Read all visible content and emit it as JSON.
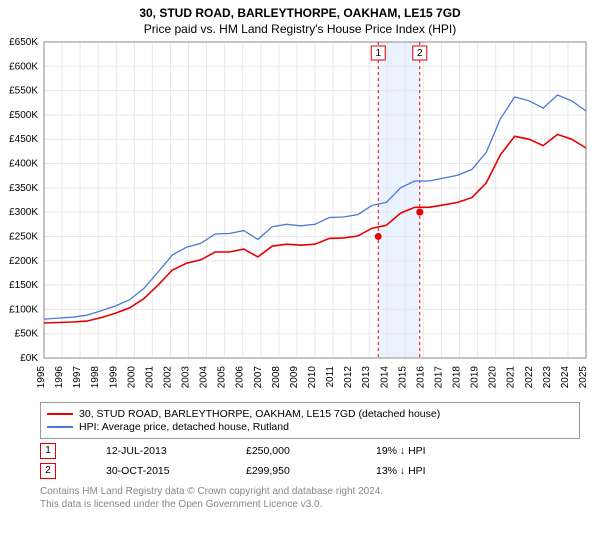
{
  "title1": "30, STUD ROAD, BARLEYTHORPE, OAKHAM, LE15 7GD",
  "title2": "Price paid vs. HM Land Registry's House Price Index (HPI)",
  "chart": {
    "type": "line",
    "background_color": "#ffffff",
    "grid_color": "#e7e7e7",
    "axis_color": "#000000",
    "ylim": [
      0,
      650
    ],
    "y_unit_label": "£{v}K",
    "ytick_step": 50,
    "x_years": [
      1995,
      1996,
      1997,
      1998,
      1999,
      2000,
      2001,
      2002,
      2003,
      2004,
      2005,
      2006,
      2007,
      2008,
      2009,
      2010,
      2011,
      2012,
      2013,
      2014,
      2015,
      2016,
      2017,
      2018,
      2019,
      2020,
      2021,
      2022,
      2023,
      2024,
      2025
    ],
    "series": [
      {
        "name": "price_paid",
        "label": "30, STUD ROAD, BARLEYTHORPE, OAKHAM, LE15 7GD (detached house)",
        "color": "#e60000",
        "line_width": 1.6,
        "y": [
          72,
          73,
          74,
          76,
          83,
          92,
          103,
          122,
          150,
          181,
          195,
          202,
          218,
          218,
          224,
          208,
          230,
          234,
          232,
          234,
          246,
          247,
          251,
          267,
          273,
          298,
          310,
          310,
          315,
          320,
          330,
          360,
          418,
          456,
          450,
          437,
          460,
          450,
          432
        ]
      },
      {
        "name": "hpi",
        "label": "HPI: Average price, detached house, Rutland",
        "color": "#4a78d6",
        "line_width": 1.3,
        "y": [
          80,
          82,
          84,
          88,
          97,
          107,
          120,
          143,
          177,
          212,
          228,
          236,
          255,
          256,
          262,
          244,
          270,
          275,
          272,
          275,
          289,
          290,
          295,
          314,
          320,
          350,
          364,
          364,
          370,
          376,
          388,
          423,
          492,
          537,
          529,
          514,
          541,
          529,
          508
        ]
      }
    ],
    "highlight_band": {
      "from_year": 2013.5,
      "to_year": 2015.8,
      "fill": "#eaf2ff"
    },
    "sale_markers": [
      {
        "id": "1",
        "year": 2013.5,
        "y_value": 250,
        "line_color": "#e60000",
        "dash": "3,3"
      },
      {
        "id": "2",
        "year": 2015.8,
        "y_value": 300,
        "line_color": "#e60000",
        "dash": "3,3"
      }
    ],
    "marker_dot": {
      "radius": 3.5,
      "fill": "#e60000"
    }
  },
  "legend": {
    "border_color": "#999999",
    "series_labels": [
      "30, STUD ROAD, BARLEYTHORPE, OAKHAM, LE15 7GD (detached house)",
      "HPI: Average price, detached house, Rutland"
    ],
    "colors": [
      "#e60000",
      "#4a78d6"
    ]
  },
  "sales_table": [
    {
      "marker": "1",
      "marker_color": "#e60000",
      "date": "12-JUL-2013",
      "price": "£250,000",
      "delta": "19% ↓ HPI"
    },
    {
      "marker": "2",
      "marker_color": "#e60000",
      "date": "30-OCT-2015",
      "price": "£299,950",
      "delta": "13% ↓ HPI"
    }
  ],
  "footer1": "Contains HM Land Registry data © Crown copyright and database right 2024.",
  "footer2": "This data is licensed under the Open Government Licence v3.0."
}
